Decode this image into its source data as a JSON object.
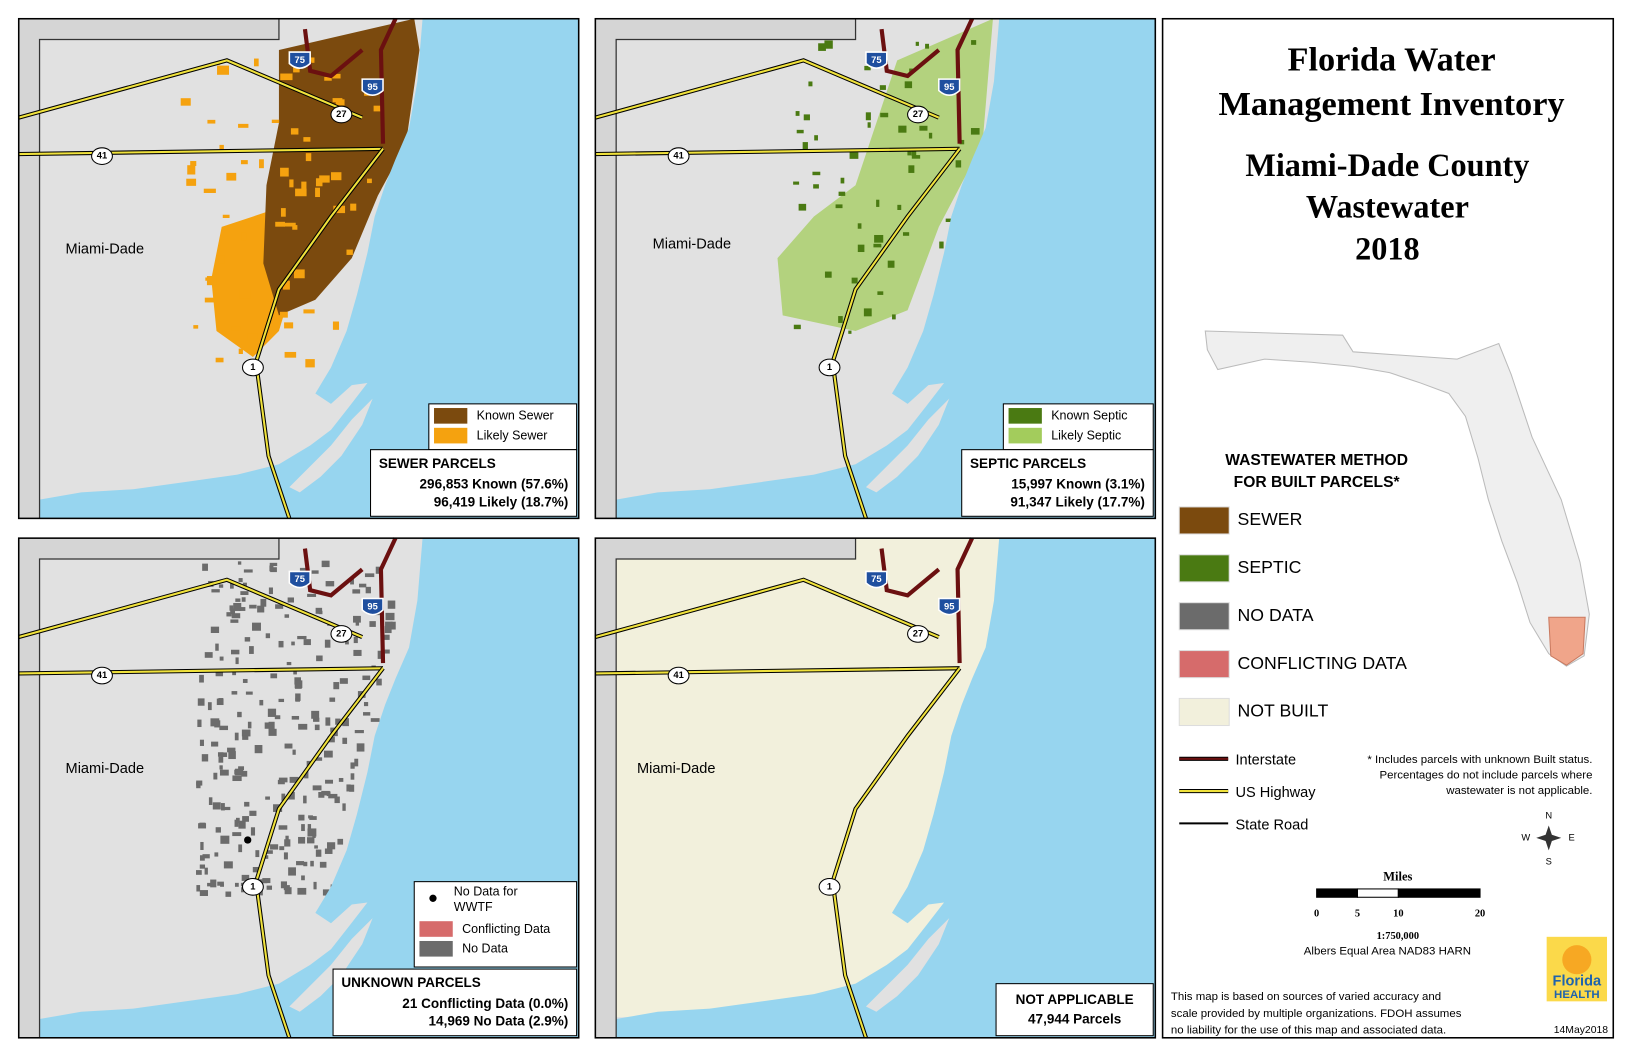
{
  "header": {
    "title": [
      "Florida Water",
      "Management Inventory"
    ],
    "subtitle": [
      "Miami-Dade County",
      "Wastewater",
      "2018"
    ]
  },
  "county_label": "Miami-Dade",
  "road_shields": [
    "75",
    "95",
    "27",
    "41",
    "1"
  ],
  "panels": [
    {
      "legend": [
        {
          "label": "Known Sewer",
          "color": "#7b4a0e"
        },
        {
          "label": "Likely Sewer",
          "color": "#f5a20f"
        }
      ],
      "stats": {
        "title": "SEWER PARCELS",
        "lines": [
          "296,853 Known (57.6%)",
          "96,419 Likely (18.7%)"
        ]
      }
    },
    {
      "legend": [
        {
          "label": "Known Septic",
          "color": "#4a7a12"
        },
        {
          "label": "Likely Septic",
          "color": "#a3cc5c"
        }
      ],
      "stats": {
        "title": "SEPTIC PARCELS",
        "lines": [
          "15,997 Known (3.1%)",
          "91,347 Likely (17.7%)"
        ]
      }
    },
    {
      "legend": [
        {
          "label": [
            "No Data for",
            "WWTF"
          ],
          "color": "#000000"
        },
        {
          "label": "Conflicting Data",
          "color": "#d66b6b"
        },
        {
          "label": "No Data",
          "color": "#6b6b6b"
        }
      ],
      "stats": {
        "title": "UNKNOWN PARCELS",
        "lines": [
          "21 Conflicting Data (0.0%)",
          "14,969 No Data (2.9%)"
        ]
      }
    },
    {
      "stats": {
        "title": "NOT APPLICABLE",
        "lines": [
          "47,944 Parcels"
        ]
      }
    }
  ],
  "legend": {
    "title": [
      "WASTEWATER METHOD",
      "FOR BUILT PARCELS*"
    ],
    "items": [
      {
        "label": "SEWER",
        "color": "#7b4a0e"
      },
      {
        "label": "SEPTIC",
        "color": "#4a7a12"
      },
      {
        "label": "NO DATA",
        "color": "#6b6b6b"
      },
      {
        "label": "CONFLICTING DATA",
        "color": "#d66b6b"
      },
      {
        "label": "NOT BUILT",
        "color": "#f2f0dc"
      }
    ],
    "roads": [
      {
        "label": "Interstate",
        "color": "#6b1010"
      },
      {
        "label": "US Highway",
        "color": "#f0e23c"
      },
      {
        "label": "State Road",
        "color": "#000000"
      }
    ]
  },
  "footnote": [
    "*  Includes parcels with unknown Built status.",
    "Percentages do not include parcels where",
    "wastewater is not applicable."
  ],
  "compass": [
    "N",
    "S",
    "W",
    "E"
  ],
  "scale": {
    "title": "Miles",
    "ticks": [
      0,
      5,
      10,
      20
    ],
    "ratio": "1:750,000",
    "projection": "Albers Equal Area NAD83 HARN"
  },
  "disclaimer": [
    "This map is based on sources of varied accuracy and",
    "scale provided by multiple organizations. FDOH assumes",
    "no liability for the use of this map and associated data."
  ],
  "logo": [
    "Florida",
    "HEALTH"
  ],
  "date": "14May2018"
}
